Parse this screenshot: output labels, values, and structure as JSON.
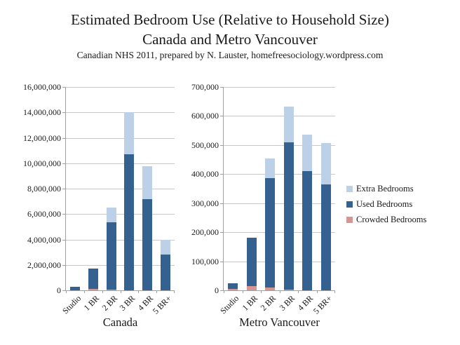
{
  "header": {
    "title_line1": "Estimated Bedroom Use (Relative to Household Size)",
    "title_line2": "Canada and Metro Vancouver",
    "subtitle": "Canadian NHS 2011, prepared by N. Lauster, homefreesociology.wordpress.com"
  },
  "colors": {
    "extra_bedrooms": "#bcd0e8",
    "used_bedrooms": "#34618f",
    "crowded_bedrooms": "#d59593",
    "gridline": "#c9c9c9",
    "axis_line": "#a0a0a0",
    "text": "#1a1a1a"
  },
  "legend": {
    "items": [
      {
        "label": "Extra Bedrooms",
        "key": "extra_bedrooms"
      },
      {
        "label": "Used Bedrooms",
        "key": "used_bedrooms"
      },
      {
        "label": "Crowded Bedrooms",
        "key": "crowded_bedrooms"
      }
    ]
  },
  "chart_data": [
    {
      "type": "bar",
      "stacked": true,
      "xlabel": "Canada",
      "ylabel": "",
      "categories": [
        "Studio",
        "1 BR",
        "2 BR",
        "3 BR",
        "4 BR",
        "5 BR+"
      ],
      "series": [
        {
          "name": "Crowded Bedrooms",
          "key": "crowded_bedrooms",
          "values": [
            0,
            100000,
            80000,
            0,
            0,
            0
          ]
        },
        {
          "name": "Used Bedrooms",
          "key": "used_bedrooms",
          "values": [
            250000,
            1620000,
            5250000,
            10700000,
            7200000,
            2800000
          ]
        },
        {
          "name": "Extra Bedrooms",
          "key": "extra_bedrooms",
          "values": [
            0,
            0,
            1200000,
            3300000,
            2550000,
            1200000
          ]
        }
      ],
      "ylim": [
        0,
        16000000
      ],
      "ytick_step": 2000000,
      "grid": true,
      "legend_position": "right"
    },
    {
      "type": "bar",
      "stacked": true,
      "xlabel": "Metro Vancouver",
      "ylabel": "",
      "categories": [
        "Studio",
        "1 BR",
        "2 BR",
        "3 BR",
        "4 BR",
        "5 BR+"
      ],
      "series": [
        {
          "name": "Crowded Bedrooms",
          "key": "crowded_bedrooms",
          "values": [
            4000,
            14000,
            9000,
            3000,
            0,
            0
          ]
        },
        {
          "name": "Used Bedrooms",
          "key": "used_bedrooms",
          "values": [
            21000,
            168000,
            377000,
            506000,
            410000,
            364000
          ]
        },
        {
          "name": "Extra Bedrooms",
          "key": "extra_bedrooms",
          "values": [
            0,
            0,
            69000,
            124000,
            125000,
            143000
          ]
        }
      ],
      "ylim": [
        0,
        700000
      ],
      "ytick_step": 100000,
      "grid": true,
      "legend_position": "right"
    }
  ]
}
